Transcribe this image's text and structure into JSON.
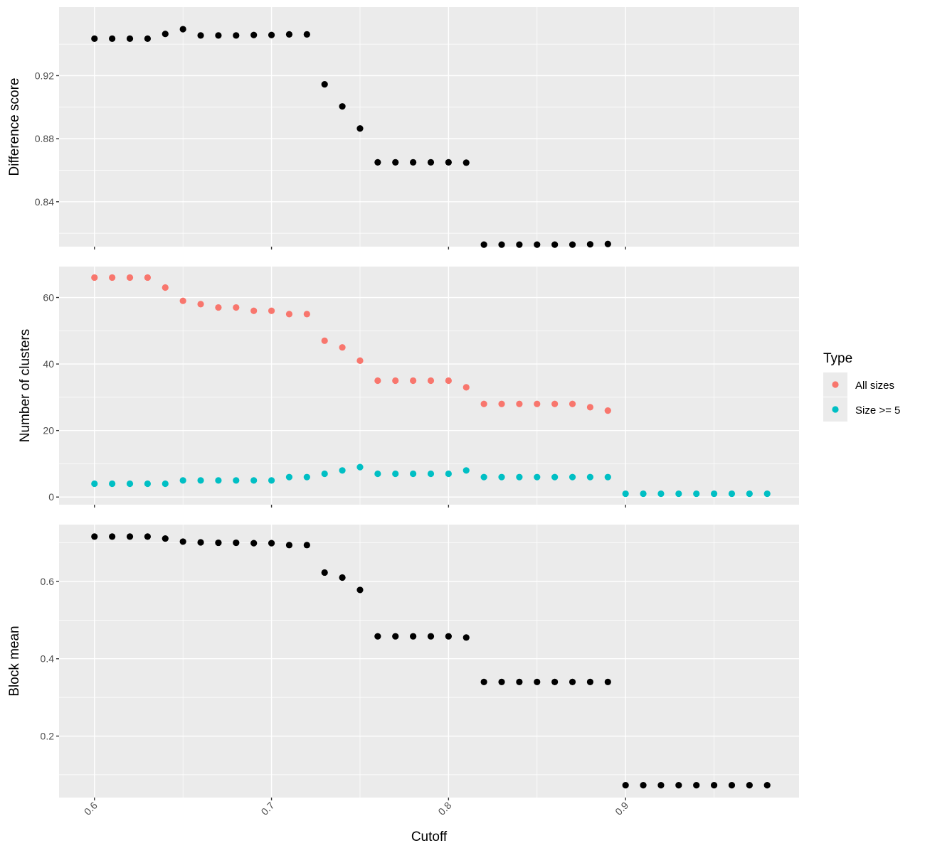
{
  "chart_data": {
    "type": "scatter",
    "xlabel": "Cutoff",
    "xlim": [
      0.58,
      0.998
    ],
    "x_ticks": [
      0.6,
      0.7,
      0.8,
      0.9
    ],
    "x_tick_labels": [
      "0.6",
      "0.7",
      "0.8",
      "0.9"
    ],
    "grid": true,
    "legend": {
      "title": "Type",
      "placement": "right",
      "entries": [
        {
          "label": "All sizes",
          "color": "#F8766D"
        },
        {
          "label": "Size >= 5",
          "color": "#00BFC4"
        }
      ]
    },
    "panels": [
      {
        "id": "difference",
        "ylabel": "Difference score",
        "ylim": [
          0.8115,
          0.9635
        ],
        "y_ticks": [
          0.84,
          0.88,
          0.92
        ],
        "y_tick_labels": [
          "0.84",
          "0.88",
          "0.92"
        ],
        "series": [
          {
            "color": "#000000",
            "x": [
              0.6,
              0.61,
              0.62,
              0.63,
              0.64,
              0.65,
              0.66,
              0.67,
              0.68,
              0.69,
              0.7,
              0.71,
              0.72,
              0.73,
              0.74,
              0.75,
              0.76,
              0.77,
              0.78,
              0.79,
              0.8,
              0.81,
              0.82,
              0.83,
              0.84,
              0.85,
              0.86,
              0.87,
              0.88,
              0.89
            ],
            "y": [
              0.9435,
              0.9435,
              0.9435,
              0.9435,
              0.9465,
              0.9495,
              0.9455,
              0.9455,
              0.9455,
              0.9458,
              0.9458,
              0.9462,
              0.9462,
              0.9145,
              0.9005,
              0.8865,
              0.865,
              0.865,
              0.865,
              0.865,
              0.865,
              0.8648,
              0.8128,
              0.8128,
              0.8128,
              0.8128,
              0.8128,
              0.8128,
              0.813,
              0.8132
            ]
          }
        ]
      },
      {
        "id": "clusters",
        "ylabel": "Number of clusters",
        "ylim": [
          -2.3,
          69.3
        ],
        "y_ticks": [
          0,
          20,
          40,
          60
        ],
        "y_tick_labels": [
          "0",
          "20",
          "40",
          "60"
        ],
        "series": [
          {
            "name": "All sizes",
            "color": "#F8766D",
            "x": [
              0.6,
              0.61,
              0.62,
              0.63,
              0.64,
              0.65,
              0.66,
              0.67,
              0.68,
              0.69,
              0.7,
              0.71,
              0.72,
              0.73,
              0.74,
              0.75,
              0.76,
              0.77,
              0.78,
              0.79,
              0.8,
              0.81,
              0.82,
              0.83,
              0.84,
              0.85,
              0.86,
              0.87,
              0.88,
              0.89
            ],
            "y": [
              66,
              66,
              66,
              66,
              63,
              59,
              58,
              57,
              57,
              56,
              56,
              55,
              55,
              47,
              45,
              41,
              35,
              35,
              35,
              35,
              35,
              33,
              28,
              28,
              28,
              28,
              28,
              28,
              27,
              26
            ]
          },
          {
            "name": "Size >= 5",
            "color": "#00BFC4",
            "x": [
              0.6,
              0.61,
              0.62,
              0.63,
              0.64,
              0.65,
              0.66,
              0.67,
              0.68,
              0.69,
              0.7,
              0.71,
              0.72,
              0.73,
              0.74,
              0.75,
              0.76,
              0.77,
              0.78,
              0.79,
              0.8,
              0.81,
              0.82,
              0.83,
              0.84,
              0.85,
              0.86,
              0.87,
              0.88,
              0.89,
              0.9,
              0.91,
              0.92,
              0.93,
              0.94,
              0.95,
              0.96,
              0.97,
              0.98
            ],
            "y": [
              4,
              4,
              4,
              4,
              4,
              5,
              5,
              5,
              5,
              5,
              5,
              6,
              6,
              7,
              8,
              9,
              7,
              7,
              7,
              7,
              7,
              8,
              6,
              6,
              6,
              6,
              6,
              6,
              6,
              6,
              1,
              1,
              1,
              1,
              1,
              1,
              1,
              1,
              1
            ]
          }
        ]
      },
      {
        "id": "blockmean",
        "ylabel": "Block mean",
        "ylim": [
          0.041,
          0.747
        ],
        "y_ticks": [
          0.2,
          0.4,
          0.6
        ],
        "y_tick_labels": [
          "0.2",
          "0.4",
          "0.6"
        ],
        "series": [
          {
            "color": "#000000",
            "x": [
              0.6,
              0.61,
              0.62,
              0.63,
              0.64,
              0.65,
              0.66,
              0.67,
              0.68,
              0.69,
              0.7,
              0.71,
              0.72,
              0.73,
              0.74,
              0.75,
              0.76,
              0.77,
              0.78,
              0.79,
              0.8,
              0.81,
              0.82,
              0.83,
              0.84,
              0.85,
              0.86,
              0.87,
              0.88,
              0.89,
              0.9,
              0.91,
              0.92,
              0.93,
              0.94,
              0.95,
              0.96,
              0.97,
              0.98
            ],
            "y": [
              0.716,
              0.716,
              0.716,
              0.716,
              0.711,
              0.703,
              0.701,
              0.7,
              0.7,
              0.699,
              0.699,
              0.694,
              0.694,
              0.623,
              0.61,
              0.578,
              0.458,
              0.458,
              0.458,
              0.458,
              0.458,
              0.455,
              0.34,
              0.34,
              0.34,
              0.34,
              0.34,
              0.34,
              0.34,
              0.34,
              0.073,
              0.073,
              0.073,
              0.073,
              0.073,
              0.073,
              0.073,
              0.073,
              0.073
            ]
          }
        ]
      }
    ]
  }
}
